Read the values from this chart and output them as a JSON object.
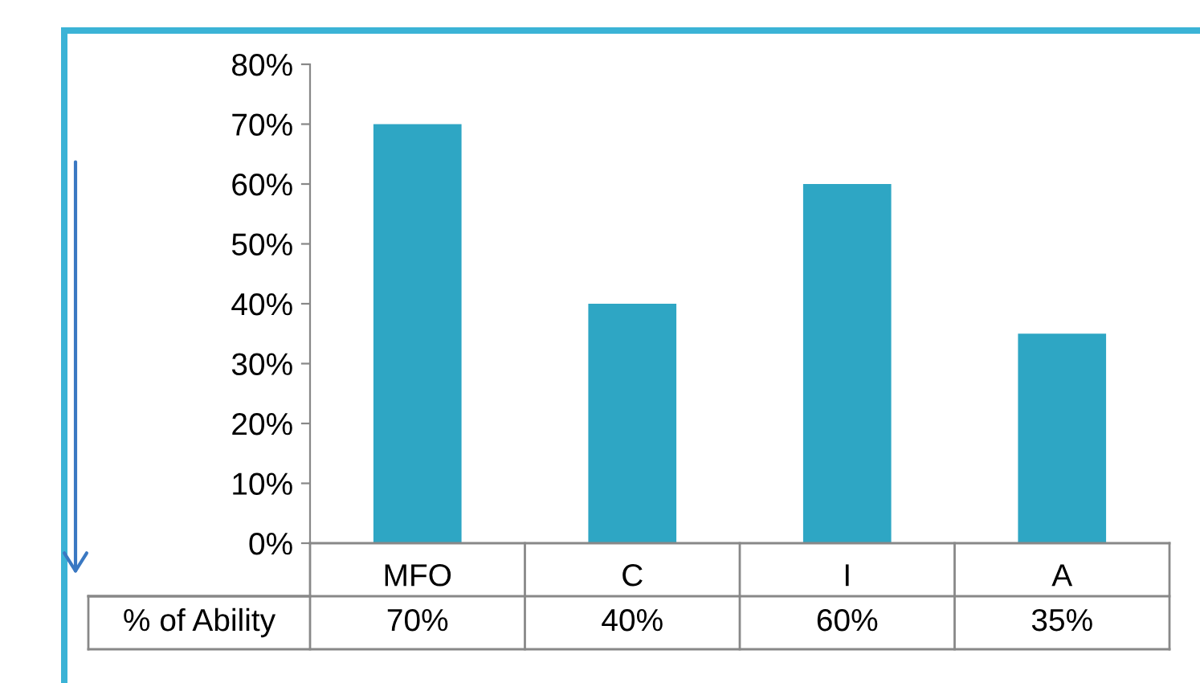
{
  "chart_data": {
    "type": "bar",
    "categories": [
      "MFO",
      "C",
      "I",
      "A"
    ],
    "series": [
      {
        "name": "% of Ability",
        "color": "#2ea6c4",
        "values": [
          70,
          40,
          60,
          35
        ],
        "value_labels": [
          "70%",
          "40%",
          "60%",
          "35%"
        ]
      }
    ],
    "ylim": [
      0,
      80
    ],
    "yticks": [
      {
        "value": 0,
        "label": "0%"
      },
      {
        "value": 10,
        "label": "10%"
      },
      {
        "value": 20,
        "label": "20%"
      },
      {
        "value": 30,
        "label": "30%"
      },
      {
        "value": 40,
        "label": "40%"
      },
      {
        "value": 50,
        "label": "50%"
      },
      {
        "value": 60,
        "label": "60%"
      },
      {
        "value": 70,
        "label": "70%"
      },
      {
        "value": 80,
        "label": "80%"
      }
    ],
    "grid": false,
    "legend": false
  }
}
